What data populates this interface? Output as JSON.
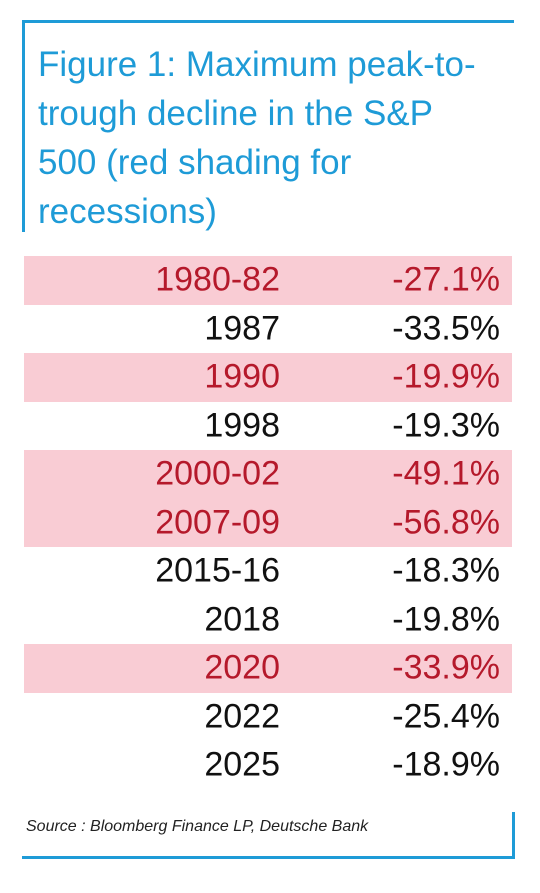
{
  "title": "Figure 1: Maximum peak-to-trough decline in the S&P 500 (red shading for recessions)",
  "source": "Source : Bloomberg Finance LP, Deutsche Bank",
  "colors": {
    "accent": "#1e9bd7",
    "recession_shading": "#f9ccd4",
    "recession_text": "#b5192b",
    "text": "#111111"
  },
  "chart_data": {
    "type": "table",
    "title": "Figure 1: Maximum peak-to-trough decline in the S&P 500 (red shading for recessions)",
    "columns": [
      "",
      ""
    ],
    "rows": [
      {
        "period": "1980-82",
        "decline": "-27.1%",
        "value": -27.1,
        "recession": true
      },
      {
        "period": "1987",
        "decline": "-33.5%",
        "value": -33.5,
        "recession": false
      },
      {
        "period": "1990",
        "decline": "-19.9%",
        "value": -19.9,
        "recession": true
      },
      {
        "period": "1998",
        "decline": "-19.3%",
        "value": -19.3,
        "recession": false
      },
      {
        "period": "2000-02",
        "decline": "-49.1%",
        "value": -49.1,
        "recession": true
      },
      {
        "period": "2007-09",
        "decline": "-56.8%",
        "value": -56.8,
        "recession": true
      },
      {
        "period": "2015-16",
        "decline": "-18.3%",
        "value": -18.3,
        "recession": false
      },
      {
        "period": "2018",
        "decline": "-19.8%",
        "value": -19.8,
        "recession": false
      },
      {
        "period": "2020",
        "decline": "-33.9%",
        "value": -33.9,
        "recession": true
      },
      {
        "period": "2022",
        "decline": "-25.4%",
        "value": -25.4,
        "recession": false
      },
      {
        "period": "2025",
        "decline": "-18.9%",
        "value": -18.9,
        "recession": false
      }
    ],
    "source": "Source : Bloomberg Finance LP, Deutsche Bank"
  }
}
